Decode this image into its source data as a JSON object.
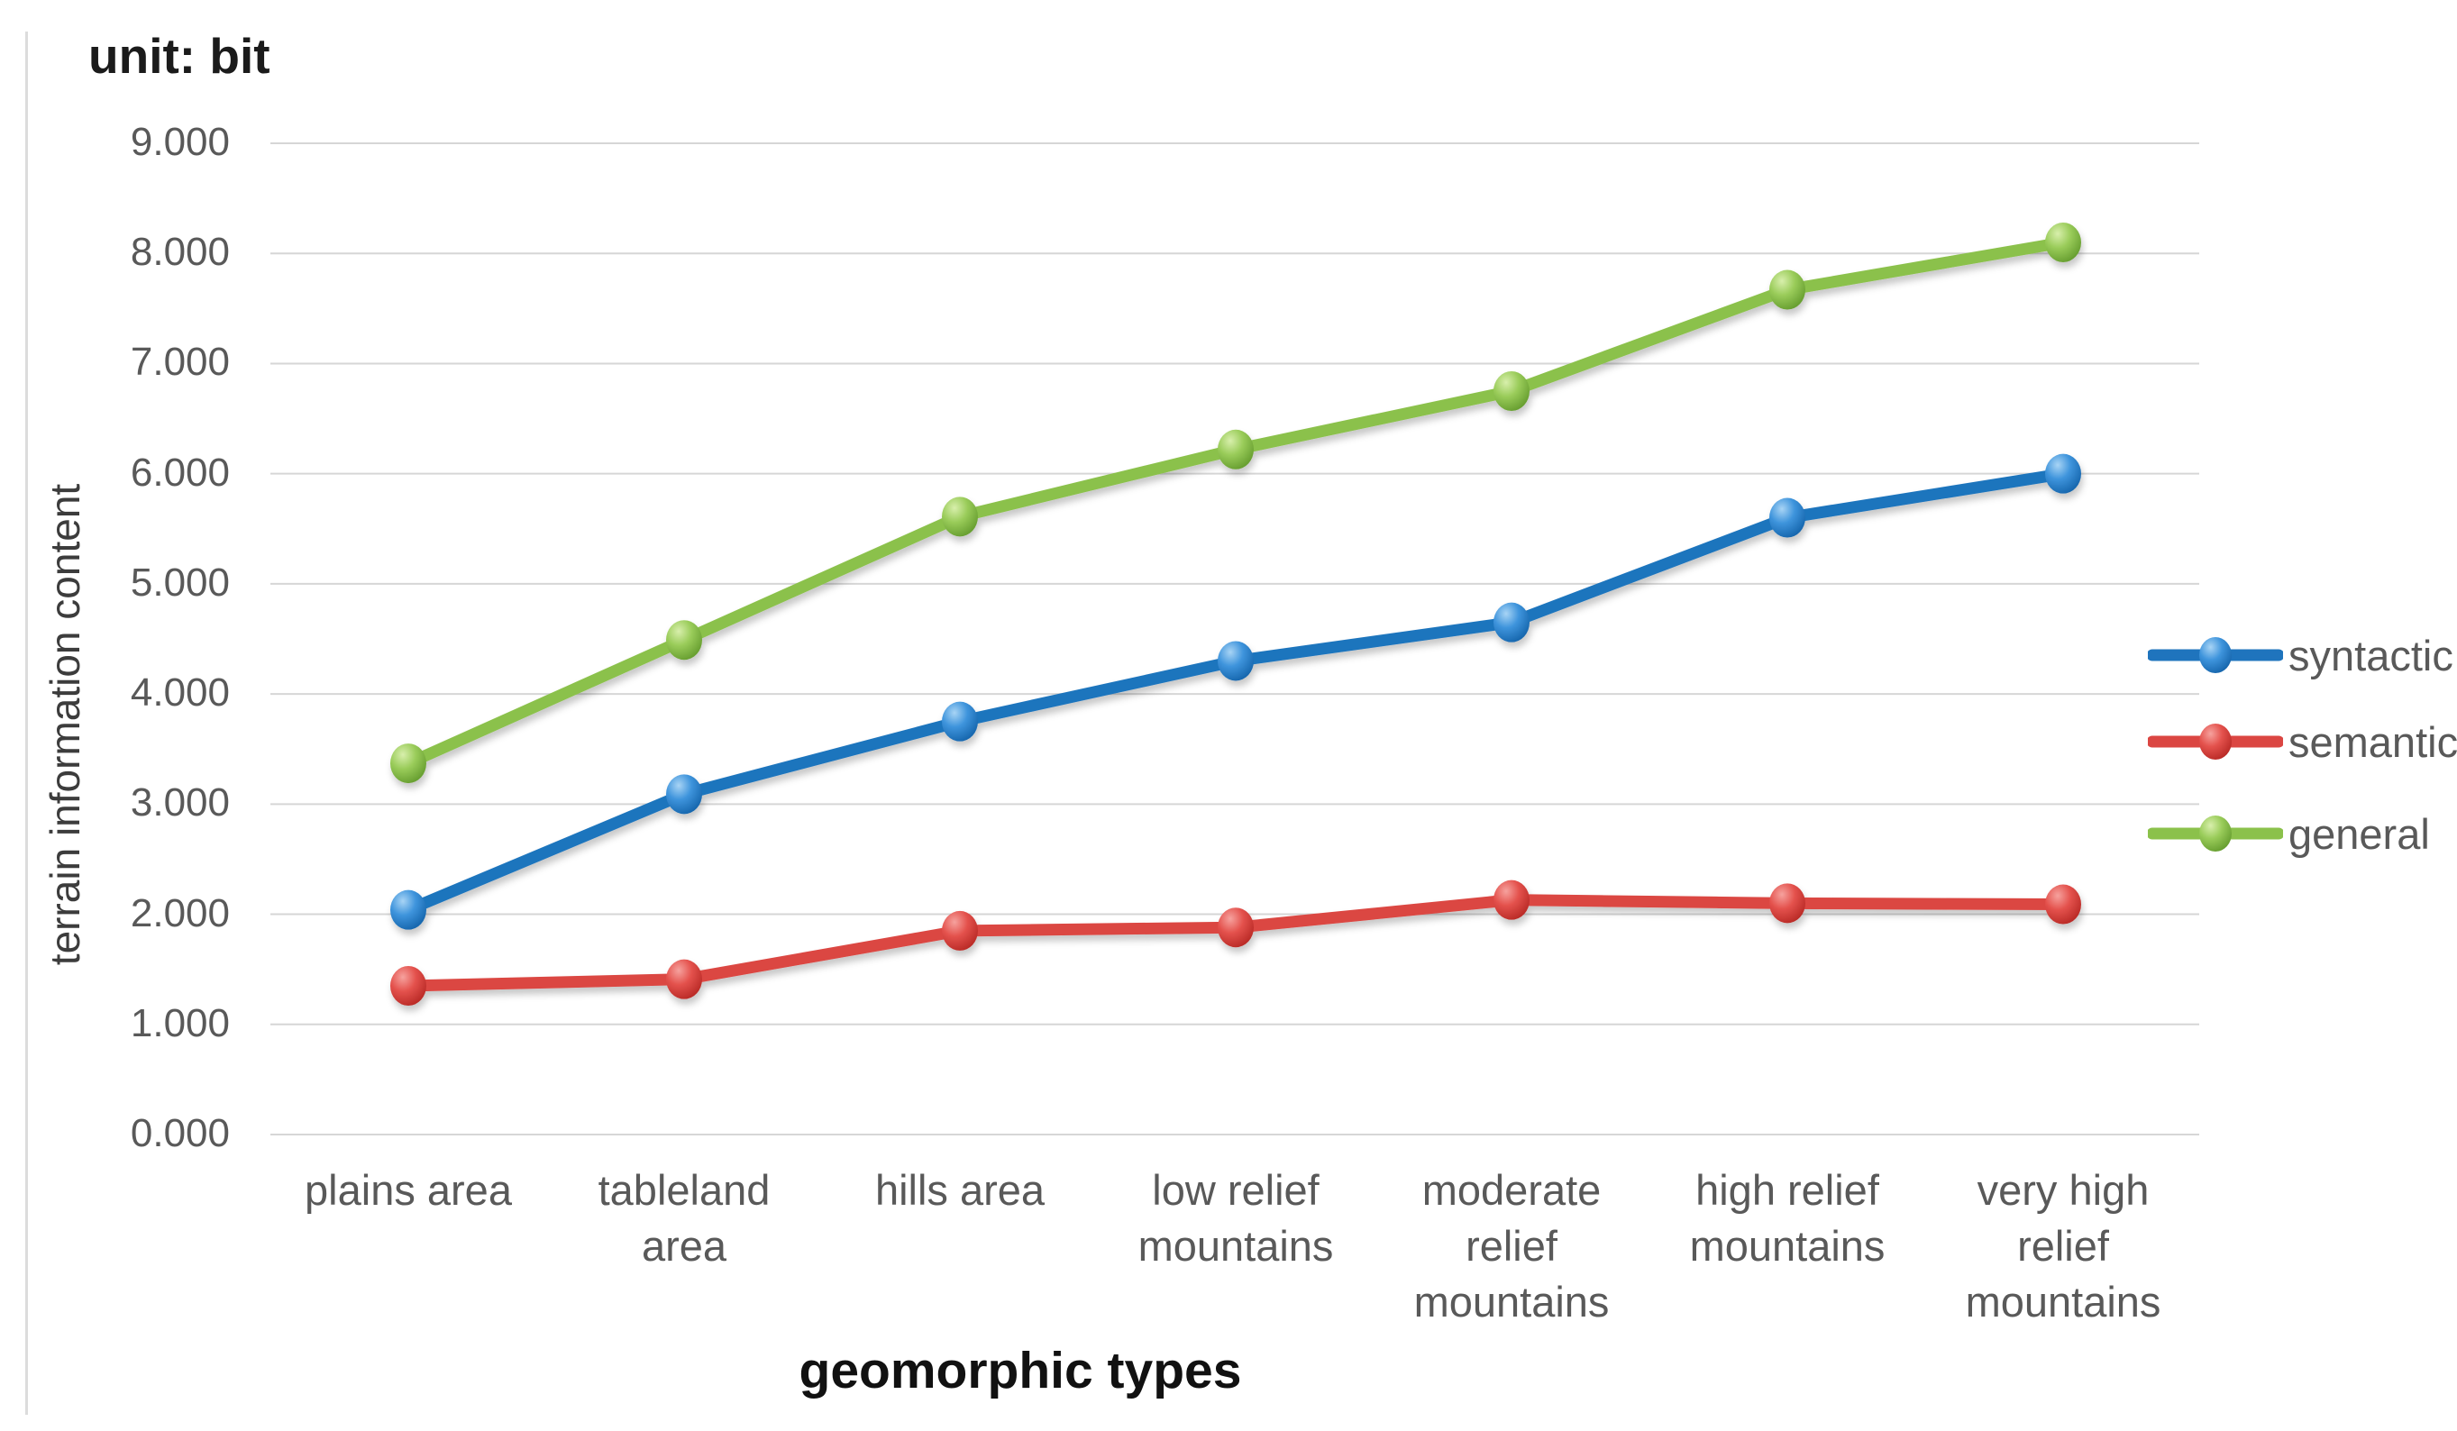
{
  "chart_data": {
    "type": "line",
    "title": "unit: bit",
    "xlabel": "geomorphic types",
    "ylabel": "terrain information content",
    "categories": [
      "plains area",
      "tableland area",
      "hills area",
      "low relief mountains",
      "moderate relief mountains",
      "high relief mountains",
      "very high relief mountains"
    ],
    "series": [
      {
        "name": "syntactic",
        "color": "#1F74BD",
        "gradient": [
          "#A8D4F5",
          "#3E94DC",
          "#1261A8"
        ],
        "values": [
          2.04,
          3.09,
          3.75,
          4.3,
          4.65,
          5.6,
          6.0
        ]
      },
      {
        "name": "semantic",
        "color": "#DB4642",
        "gradient": [
          "#F6A29E",
          "#E4524D",
          "#B52622"
        ],
        "values": [
          1.35,
          1.41,
          1.85,
          1.88,
          2.13,
          2.1,
          2.09
        ]
      },
      {
        "name": "general",
        "color": "#8BC14B",
        "gradient": [
          "#D8EFAC",
          "#9ACC5A",
          "#61992B"
        ],
        "values": [
          3.37,
          4.49,
          5.61,
          6.22,
          6.75,
          7.67,
          8.1
        ]
      }
    ],
    "ylim": [
      0,
      9
    ],
    "ytick_step": 1,
    "ytick_labels": [
      "0.000",
      "1.000",
      "2.000",
      "3.000",
      "4.000",
      "5.000",
      "6.000",
      "7.000",
      "8.000",
      "9.000"
    ],
    "grid": true,
    "gridline_color": "#D6D6D6",
    "legend_position": "right"
  }
}
